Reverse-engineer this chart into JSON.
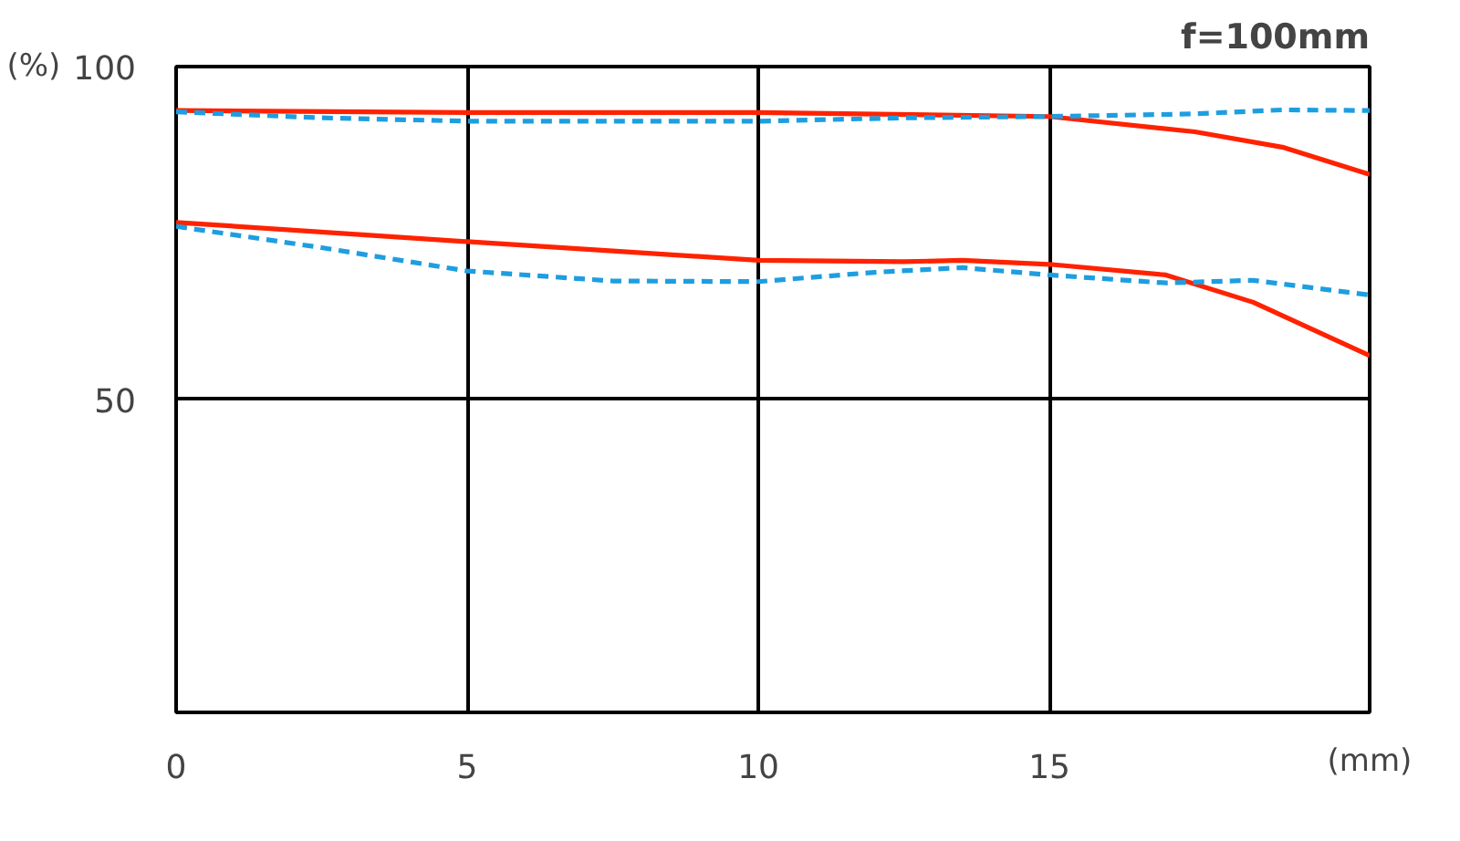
{
  "chart_data": {
    "type": "line",
    "title": "f=100mm",
    "xlabel": "(mm)",
    "ylabel": "(%)",
    "xlim": [
      0,
      20.5
    ],
    "ylim": [
      3,
      100
    ],
    "xticks": [
      0,
      5,
      10,
      15
    ],
    "yticks": [
      50,
      100
    ],
    "grid": true,
    "series": [
      {
        "color": "#ff2200",
        "line_style": "solid",
        "x": [
          0,
          5,
          10,
          15,
          17.5,
          19,
          20.5
        ],
        "values": [
          93.4,
          93.1,
          93.1,
          92.5,
          90.2,
          87.9,
          83.8
        ]
      },
      {
        "color": "#1e9ee0",
        "line_style": "dashed",
        "x": [
          0,
          2.5,
          5,
          10,
          12.5,
          15,
          17.5,
          19,
          20.5
        ],
        "values": [
          93.2,
          92.3,
          91.8,
          91.8,
          92.3,
          92.5,
          92.9,
          93.5,
          93.4
        ]
      },
      {
        "color": "#ff2200",
        "line_style": "solid",
        "x": [
          0,
          5,
          7.5,
          10,
          12.5,
          13.5,
          15,
          17,
          18.5,
          20.5
        ],
        "values": [
          76.6,
          73.7,
          72.3,
          70.9,
          70.7,
          70.9,
          70.3,
          68.7,
          64.6,
          56.6
        ]
      },
      {
        "color": "#1e9ee0",
        "line_style": "dashed",
        "x": [
          0,
          2.5,
          5,
          7.5,
          10,
          12,
          13.5,
          15,
          17,
          18.5,
          20.5
        ],
        "values": [
          76.0,
          72.8,
          69.3,
          67.8,
          67.7,
          69.1,
          69.8,
          68.7,
          67.5,
          67.9,
          65.7
        ]
      }
    ]
  }
}
